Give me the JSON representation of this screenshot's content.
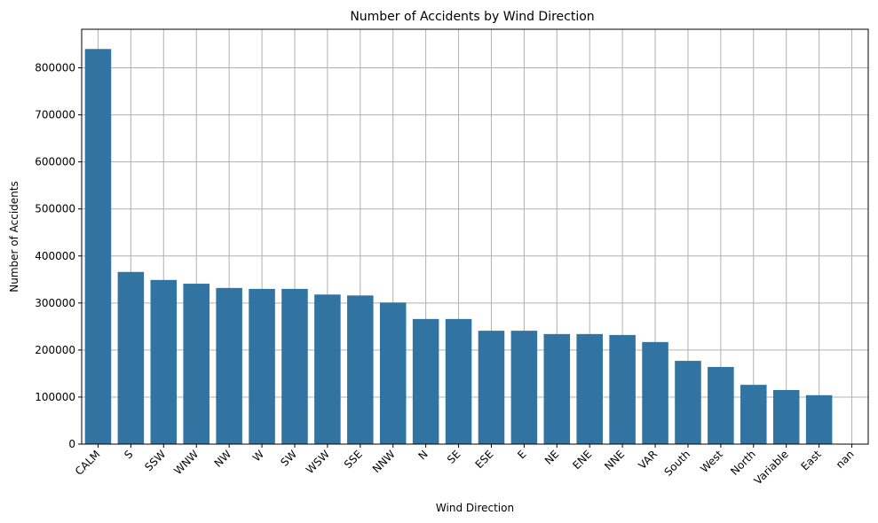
{
  "chart_data": {
    "type": "bar",
    "title": "Number of Accidents by Wind Direction",
    "xlabel": "Wind Direction",
    "ylabel": "Number of Accidents",
    "categories": [
      "CALM",
      "S",
      "SSW",
      "WNW",
      "NW",
      "W",
      "SW",
      "WSW",
      "SSE",
      "NNW",
      "N",
      "SE",
      "ESE",
      "E",
      "NE",
      "ENE",
      "NNE",
      "VAR",
      "South",
      "West",
      "North",
      "Variable",
      "East",
      "nan"
    ],
    "values": [
      840000,
      366000,
      349000,
      341000,
      332000,
      330000,
      330000,
      318000,
      316000,
      301000,
      266000,
      266000,
      241000,
      241000,
      234000,
      234000,
      232000,
      217000,
      177000,
      164000,
      126000,
      115000,
      104000,
      0
    ],
    "ylim": [
      0,
      882000
    ],
    "yticks": [
      0,
      100000,
      200000,
      300000,
      400000,
      500000,
      600000,
      700000,
      800000
    ],
    "ytick_labels": [
      "0",
      "100000",
      "200000",
      "300000",
      "400000",
      "500000",
      "600000",
      "700000",
      "800000"
    ],
    "grid": true,
    "bar_color": "#3274a1",
    "grid_color": "#b0b0b0"
  }
}
